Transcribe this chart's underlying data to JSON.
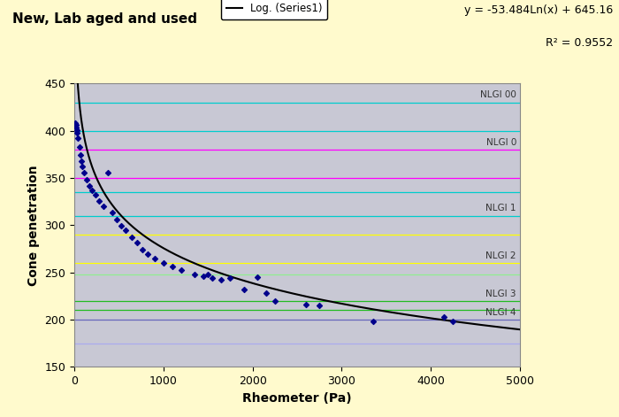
{
  "title": "New, Lab aged and used",
  "xlabel": "Rheometer (Pa)",
  "ylabel": "Cone penetration",
  "equation": "y = -53.484Ln(x) + 645.16",
  "r_squared": "R² = 0.9552",
  "xlim": [
    0,
    5000
  ],
  "ylim": [
    150,
    450
  ],
  "yticks": [
    150,
    200,
    250,
    300,
    350,
    400,
    450
  ],
  "xticks": [
    0,
    1000,
    2000,
    3000,
    4000,
    5000
  ],
  "bg_color": "#FFFACD",
  "plot_bg_color": "#C8C8D4",
  "scatter_color": "#00008B",
  "line_color": "#000000",
  "nlgi_lines": [
    {
      "y": 430,
      "color": "#00CDCD",
      "label": "NLGI 00"
    },
    {
      "y": 400,
      "color": "#00CDCD",
      "label": null
    },
    {
      "y": 380,
      "color": "#FF00FF",
      "label": "NLGI 0"
    },
    {
      "y": 350,
      "color": "#FF00FF",
      "label": null
    },
    {
      "y": 335,
      "color": "#00CCCC",
      "label": null
    },
    {
      "y": 310,
      "color": "#00CCCC",
      "label": "NLGI 1"
    },
    {
      "y": 290,
      "color": "#FFFF00",
      "label": null
    },
    {
      "y": 260,
      "color": "#FFFF00",
      "label": "NLGI 2"
    },
    {
      "y": 248,
      "color": "#90EE90",
      "label": null
    },
    {
      "y": 220,
      "color": "#22BB22",
      "label": "NLGI 3"
    },
    {
      "y": 210,
      "color": "#22BB22",
      "label": null
    },
    {
      "y": 200,
      "color": "#6666BB",
      "label": "NLGI 4"
    },
    {
      "y": 175,
      "color": "#AAAAEE",
      "label": null
    }
  ],
  "scatter_x": [
    12,
    15,
    20,
    25,
    30,
    40,
    55,
    65,
    75,
    90,
    110,
    140,
    170,
    200,
    240,
    280,
    330,
    380,
    430,
    480,
    530,
    580,
    640,
    700,
    760,
    820,
    900,
    1000,
    1100,
    1200,
    1350,
    1450,
    1500,
    1550,
    1650,
    1750,
    1900,
    2050,
    2150,
    2250,
    2600,
    2750,
    3350,
    4150,
    4250
  ],
  "scatter_y": [
    408,
    406,
    403,
    401,
    398,
    392,
    383,
    374,
    368,
    362,
    356,
    348,
    342,
    337,
    332,
    326,
    320,
    356,
    313,
    306,
    299,
    295,
    287,
    282,
    274,
    269,
    265,
    260,
    256,
    253,
    248,
    246,
    248,
    244,
    242,
    244,
    232,
    245,
    228,
    220,
    216,
    215,
    198,
    203,
    198
  ],
  "figsize": [
    7.0,
    4.71
  ],
  "dpi": 100
}
